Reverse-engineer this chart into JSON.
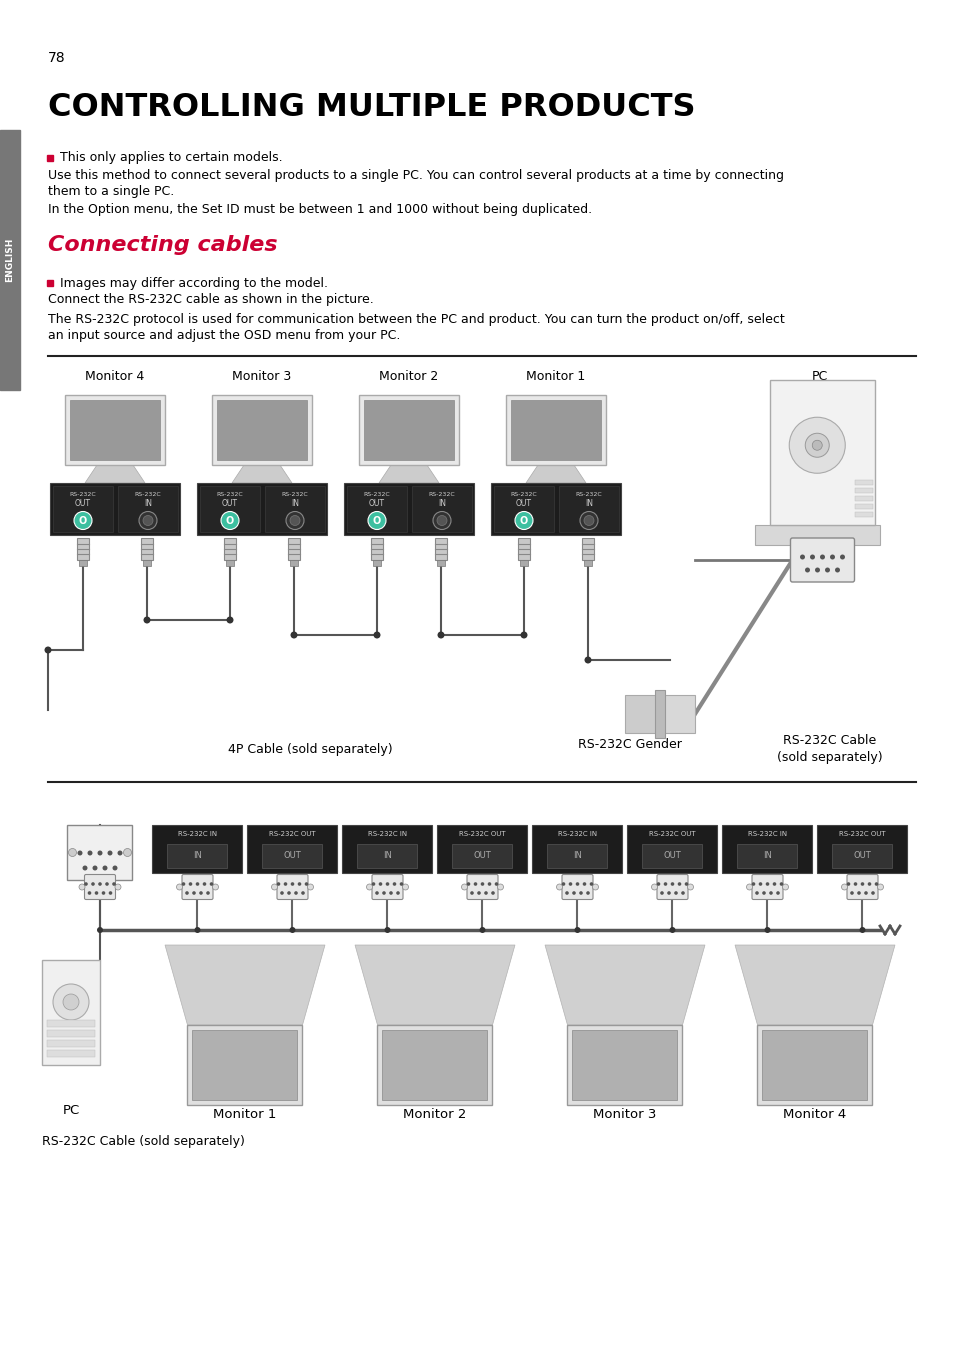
{
  "page_number": "78",
  "main_title": "CONTROLLING MULTIPLE PRODUCTS",
  "section_title": "Connecting cables",
  "sidebar_text": "ENGLISH",
  "bullet_color": "#cc0033",
  "section_title_color": "#cc0033",
  "main_title_color": "#000000",
  "bg_color": "#ffffff",
  "sidebar_bg": "#777777",
  "para1_bullet": "This only applies to certain models.",
  "para1_line1": "Use this method to connect several products to a single PC. You can control several products at a time by connecting",
  "para1_line2": "them to a single PC.",
  "para1_line3": "In the Option menu, the Set ID must be between 1 and 1000 without being duplicated.",
  "para2_bullet": "Images may differ according to the model.",
  "para2_line1": "Connect the RS-232C cable as shown in the picture.",
  "para2_line2": "The RS-232C protocol is used for communication between the PC and product. You can turn the product on/off, select",
  "para2_line3": "an input source and adjust the OSD menu from your PC.",
  "diag1_labels": [
    "Monitor 4",
    "Monitor 3",
    "Monitor 2",
    "Monitor 1",
    "PC"
  ],
  "diag1_cable_label": "4P Cable (sold separately)",
  "diag1_gender_label": "RS-232C Gender",
  "diag1_cable2_label": "RS-232C Cable\n(sold separately)",
  "diag2_bottom_labels": [
    "Monitor 1",
    "Monitor 2",
    "Monitor 3",
    "Monitor 4"
  ],
  "diag2_pc_label": "PC",
  "diag2_cable_label": "RS-232C Cable (sold separately)"
}
